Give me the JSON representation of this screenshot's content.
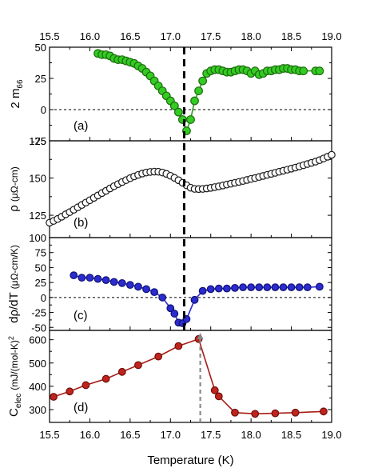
{
  "chart_data": [
    {
      "type": "scatter",
      "panel_label": "(a)",
      "ylabel_main": "2 m",
      "ylabel_sub": "66",
      "xlim": [
        15.5,
        19.0
      ],
      "ylim": [
        -25,
        50
      ],
      "yticks": [
        -25,
        0,
        25,
        50
      ],
      "zero_line": 0,
      "marker_fill": "#33cc22",
      "marker_stroke": "#1f6b10",
      "line_color": "#2c9a1a",
      "x": [
        16.1,
        16.15,
        16.2,
        16.25,
        16.3,
        16.35,
        16.4,
        16.45,
        16.5,
        16.55,
        16.6,
        16.65,
        16.7,
        16.75,
        16.8,
        16.85,
        16.9,
        16.95,
        17.0,
        17.05,
        17.1,
        17.15,
        17.2,
        17.25,
        17.3,
        17.35,
        17.4,
        17.45,
        17.5,
        17.55,
        17.6,
        17.65,
        17.7,
        17.75,
        17.8,
        17.85,
        17.9,
        17.95,
        18.0,
        18.05,
        18.1,
        18.15,
        18.2,
        18.25,
        18.3,
        18.35,
        18.4,
        18.45,
        18.5,
        18.55,
        18.6,
        18.65,
        18.8,
        18.85
      ],
      "y": [
        45,
        44,
        44,
        43,
        41,
        40,
        40,
        39,
        38,
        37,
        35,
        33,
        30,
        27,
        23,
        19,
        15,
        11,
        7,
        3,
        -2,
        -8,
        -17,
        -8,
        7,
        15,
        23,
        29,
        31,
        32,
        32,
        31,
        30,
        30,
        31,
        32,
        32,
        31,
        29,
        31,
        28,
        29,
        31,
        31,
        32,
        32,
        33,
        33,
        32,
        32,
        31,
        31,
        31,
        31
      ]
    },
    {
      "type": "scatter",
      "panel_label": "(b)",
      "ylabel_main": "ρ",
      "ylabel_unit": "(μΩ-cm)",
      "xlim": [
        15.5,
        19.0
      ],
      "ylim": [
        110,
        175
      ],
      "yticks": [
        125,
        150,
        175
      ],
      "marker_fill": "#ffffff",
      "marker_stroke": "#1a1a1a",
      "x": [
        15.5,
        15.55,
        15.6,
        15.65,
        15.7,
        15.75,
        15.8,
        15.85,
        15.9,
        15.95,
        16.0,
        16.05,
        16.1,
        16.15,
        16.2,
        16.25,
        16.3,
        16.35,
        16.4,
        16.45,
        16.5,
        16.55,
        16.6,
        16.65,
        16.7,
        16.75,
        16.8,
        16.85,
        16.9,
        16.95,
        17.0,
        17.05,
        17.1,
        17.15,
        17.2,
        17.25,
        17.3,
        17.35,
        17.4,
        17.45,
        17.5,
        17.55,
        17.6,
        17.65,
        17.7,
        17.75,
        17.8,
        17.85,
        17.9,
        17.95,
        18.0,
        18.05,
        18.1,
        18.15,
        18.2,
        18.25,
        18.3,
        18.35,
        18.4,
        18.45,
        18.5,
        18.55,
        18.6,
        18.65,
        18.7,
        18.75,
        18.8,
        18.85,
        18.9,
        18.95,
        19.0
      ],
      "y": [
        120.0,
        121.2,
        122.5,
        124.0,
        125.6,
        127.1,
        128.7,
        130.3,
        131.9,
        133.5,
        135.1,
        136.7,
        138.3,
        139.9,
        141.4,
        143.0,
        144.5,
        145.9,
        147.3,
        148.6,
        149.9,
        151.1,
        152.1,
        153.0,
        153.7,
        154.1,
        154.3,
        154.2,
        153.7,
        152.8,
        151.5,
        150.1,
        148.5,
        146.8,
        145.1,
        143.5,
        142.7,
        142.6,
        142.7,
        143.0,
        143.4,
        143.9,
        144.4,
        145.0,
        145.6,
        146.2,
        146.8,
        147.4,
        148.0,
        148.7,
        149.4,
        150.0,
        150.7,
        151.4,
        152.1,
        152.8,
        153.5,
        154.2,
        154.9,
        155.6,
        156.3,
        157.0,
        157.8,
        158.6,
        159.4,
        160.2,
        161.0,
        162.0,
        163.1,
        164.3,
        165.6
      ]
    },
    {
      "type": "line",
      "panel_label": "(c)",
      "ylabel_main": "dρ/dT",
      "ylabel_unit": "(μΩ-cm/K)",
      "xlim": [
        15.5,
        19.0
      ],
      "ylim": [
        -55,
        100
      ],
      "yticks": [
        -50,
        -25,
        0,
        25,
        50,
        75,
        100
      ],
      "zero_line": 0,
      "marker_fill": "#2b2bd0",
      "marker_stroke": "#0f1270",
      "line_color": "#2b2bd0",
      "x": [
        15.8,
        15.9,
        16.0,
        16.1,
        16.2,
        16.3,
        16.4,
        16.5,
        16.6,
        16.7,
        16.8,
        16.9,
        17.0,
        17.05,
        17.1,
        17.15,
        17.2,
        17.3,
        17.4,
        17.5,
        17.6,
        17.7,
        17.8,
        17.9,
        18.0,
        18.1,
        18.2,
        18.3,
        18.4,
        18.5,
        18.6,
        18.7,
        18.85
      ],
      "y": [
        37,
        33,
        33,
        31,
        29,
        26,
        24,
        21,
        18,
        14,
        9,
        0,
        -18,
        -27,
        -42,
        -43,
        -36,
        -4,
        11,
        14,
        15,
        15,
        16,
        17,
        17,
        17,
        17,
        17,
        17,
        17,
        17,
        17,
        18
      ]
    },
    {
      "type": "line",
      "panel_label": "(d)",
      "ylabel_main": "C",
      "ylabel_sub": "elec",
      "ylabel_unit": "(mJ/(mol-K)",
      "ylabel_sup": "2",
      "xlim": [
        15.5,
        19.0
      ],
      "ylim": [
        245,
        640
      ],
      "yticks": [
        300,
        400,
        500,
        600
      ],
      "marker_fill": "#c0241e",
      "marker_stroke": "#6e0f0a",
      "line_color": "#a81c16",
      "x": [
        15.55,
        15.75,
        15.95,
        16.2,
        16.4,
        16.6,
        16.85,
        17.1,
        17.35,
        17.55,
        17.6,
        17.8,
        18.05,
        18.3,
        18.55,
        18.9
      ],
      "y": [
        355,
        378,
        405,
        432,
        462,
        491,
        528,
        573,
        603,
        383,
        357,
        287,
        282,
        284,
        287,
        292
      ]
    }
  ],
  "marker_x": 17.17,
  "marker_x_d": 17.37,
  "xaxis": {
    "ticks": [
      "15.5",
      "16.0",
      "16.5",
      "17.0",
      "17.5",
      "18.0",
      "18.5",
      "19.0"
    ],
    "label": "Temperature (K)"
  },
  "colors": {
    "transition_line": "#000000",
    "gray_marker": "#888888"
  }
}
